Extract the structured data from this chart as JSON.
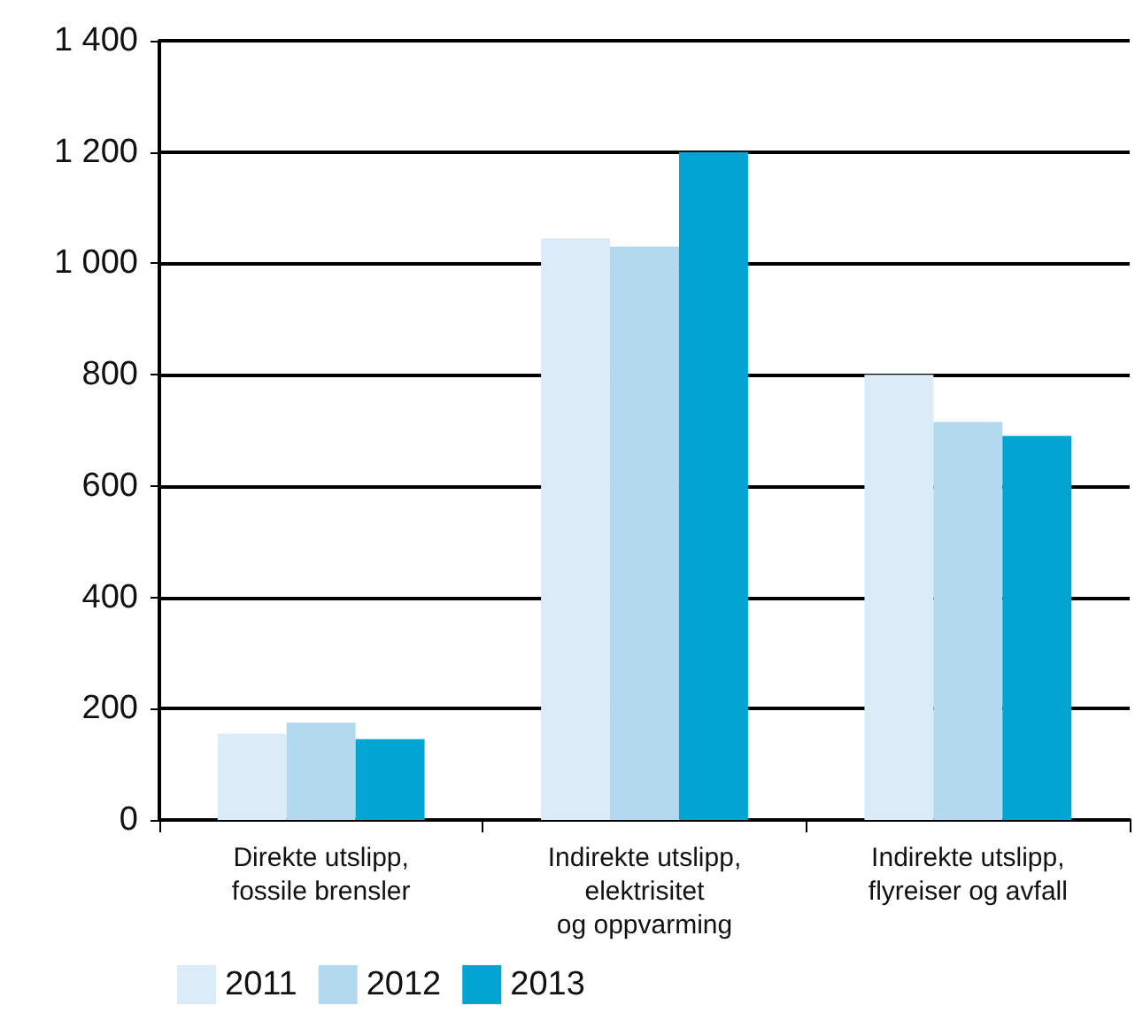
{
  "chart_data": {
    "type": "bar",
    "categories": [
      "Direkte utslipp,\nfossile brensler",
      "Indirekte utslipp,\nelektrisitet\nog oppvarming",
      "Indirekte utslipp,\nflyreiser og avfall"
    ],
    "series": [
      {
        "name": "2011",
        "color": "#dbebf7",
        "values": [
          155,
          1045,
          800
        ]
      },
      {
        "name": "2012",
        "color": "#b3d9ef",
        "values": [
          175,
          1030,
          715
        ]
      },
      {
        "name": "2013",
        "color": "#00a5d4",
        "values": [
          145,
          1200,
          690
        ]
      }
    ],
    "ylim": [
      0,
      1400
    ],
    "yticks": [
      0,
      200,
      400,
      600,
      800,
      {
        "value": 1000,
        "label": "1 000"
      },
      {
        "value": 1200,
        "label": "1 200"
      },
      {
        "value": 1400,
        "label": "1 400"
      }
    ],
    "grid": "y",
    "legend": "bottom left"
  }
}
